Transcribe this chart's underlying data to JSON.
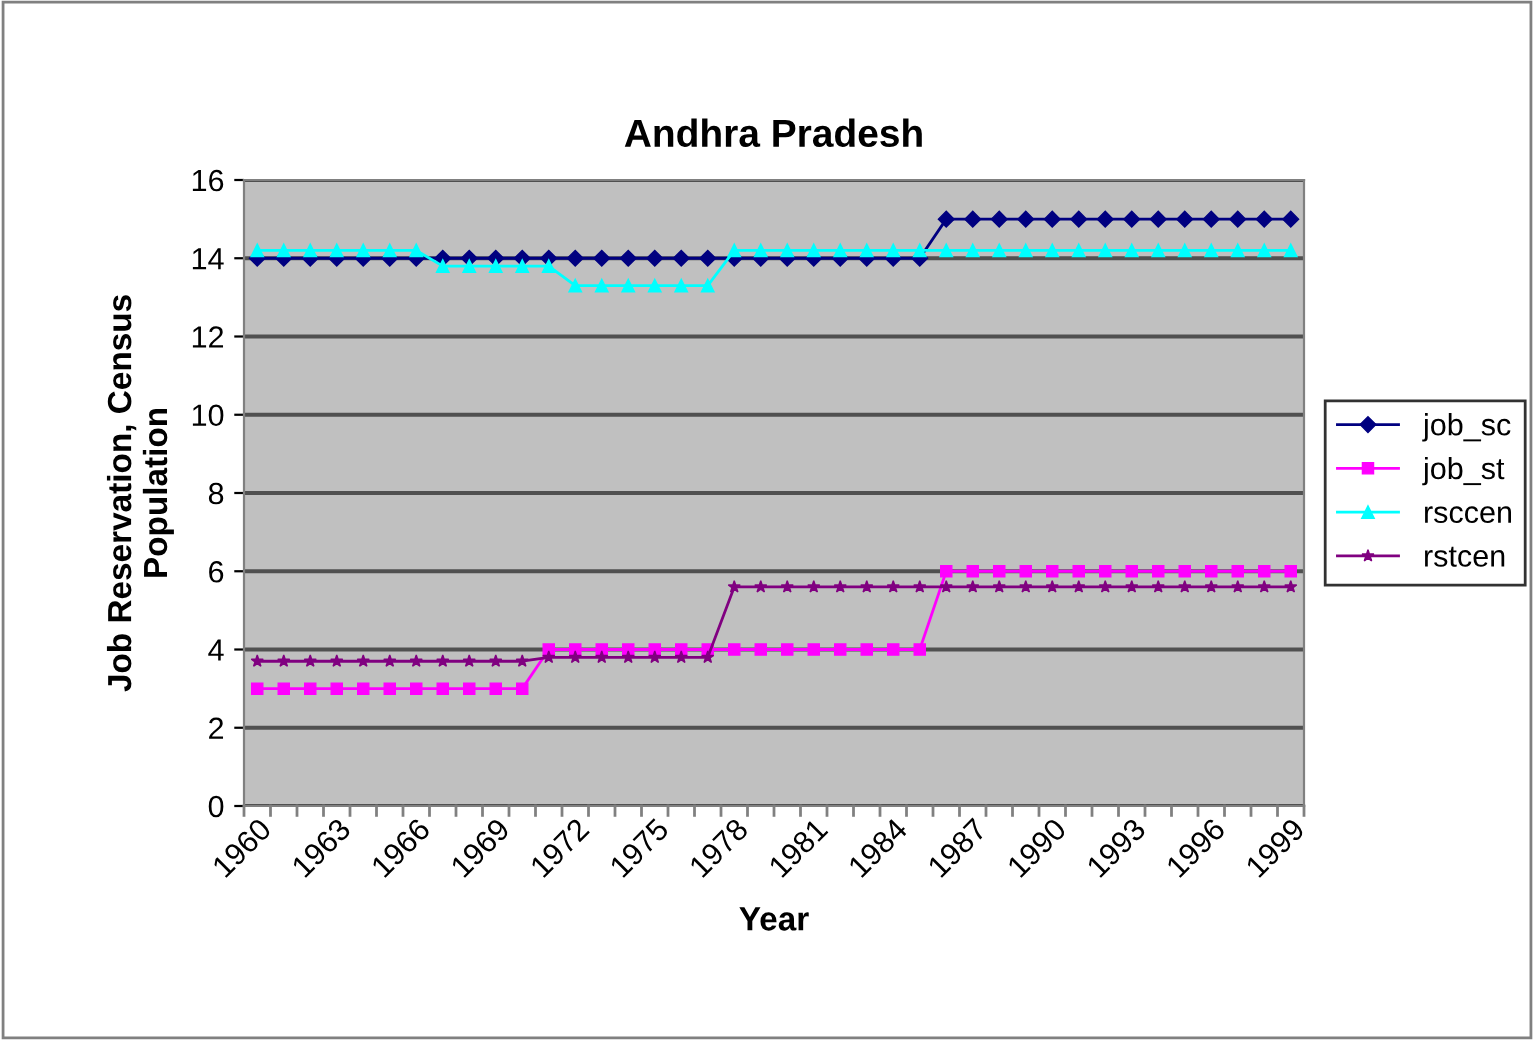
{
  "chart_data": {
    "type": "line",
    "title": "Andhra Pradesh",
    "xlabel": "Year",
    "ylabel": "Job Reservation, Census\nPopulation",
    "categories": [
      "1960",
      null,
      null,
      "1963",
      null,
      null,
      "1966",
      null,
      null,
      "1969",
      null,
      null,
      "1972",
      null,
      null,
      "1975",
      null,
      null,
      "1978",
      null,
      null,
      "1981",
      null,
      null,
      "1984",
      null,
      null,
      "1987",
      null,
      null,
      "1990",
      null,
      null,
      "1993",
      null,
      null,
      "1996",
      null,
      null,
      "1999"
    ],
    "series": [
      {
        "name": "job_sc",
        "color": "#000080",
        "marker": "diamond",
        "values": [
          14,
          14,
          14,
          14,
          14,
          14,
          14,
          14,
          14,
          14,
          14,
          14,
          14,
          14,
          14,
          14,
          14,
          14,
          14,
          14,
          14,
          14,
          14,
          14,
          14,
          14,
          15,
          15,
          15,
          15,
          15,
          15,
          15,
          15,
          15,
          15,
          15,
          15,
          15,
          15
        ]
      },
      {
        "name": "job_st",
        "color": "#ff00ff",
        "marker": "square",
        "values": [
          3,
          3,
          3,
          3,
          3,
          3,
          3,
          3,
          3,
          3,
          3,
          4,
          4,
          4,
          4,
          4,
          4,
          4,
          4,
          4,
          4,
          4,
          4,
          4,
          4,
          4,
          6,
          6,
          6,
          6,
          6,
          6,
          6,
          6,
          6,
          6,
          6,
          6,
          6,
          6
        ]
      },
      {
        "name": "rsccen",
        "color": "#00ffff",
        "marker": "triangle",
        "values": [
          14.2,
          14.2,
          14.2,
          14.2,
          14.2,
          14.2,
          14.2,
          13.8,
          13.8,
          13.8,
          13.8,
          13.8,
          13.3,
          13.3,
          13.3,
          13.3,
          13.3,
          13.3,
          14.2,
          14.2,
          14.2,
          14.2,
          14.2,
          14.2,
          14.2,
          14.2,
          14.2,
          14.2,
          14.2,
          14.2,
          14.2,
          14.2,
          14.2,
          14.2,
          14.2,
          14.2,
          14.2,
          14.2,
          14.2,
          14.2
        ]
      },
      {
        "name": "rstcen",
        "color": "#800080",
        "marker": "star",
        "values": [
          3.7,
          3.7,
          3.7,
          3.7,
          3.7,
          3.7,
          3.7,
          3.7,
          3.7,
          3.7,
          3.7,
          3.8,
          3.8,
          3.8,
          3.8,
          3.8,
          3.8,
          3.8,
          5.6,
          5.6,
          5.6,
          5.6,
          5.6,
          5.6,
          5.6,
          5.6,
          5.6,
          5.6,
          5.6,
          5.6,
          5.6,
          5.6,
          5.6,
          5.6,
          5.6,
          5.6,
          5.6,
          5.6,
          5.6,
          5.6
        ]
      }
    ],
    "ylim": [
      0,
      16
    ],
    "yticks": [
      0,
      2,
      4,
      6,
      8,
      10,
      12,
      14,
      16
    ],
    "grid": "y",
    "legend": "right",
    "line_style": "solid"
  }
}
